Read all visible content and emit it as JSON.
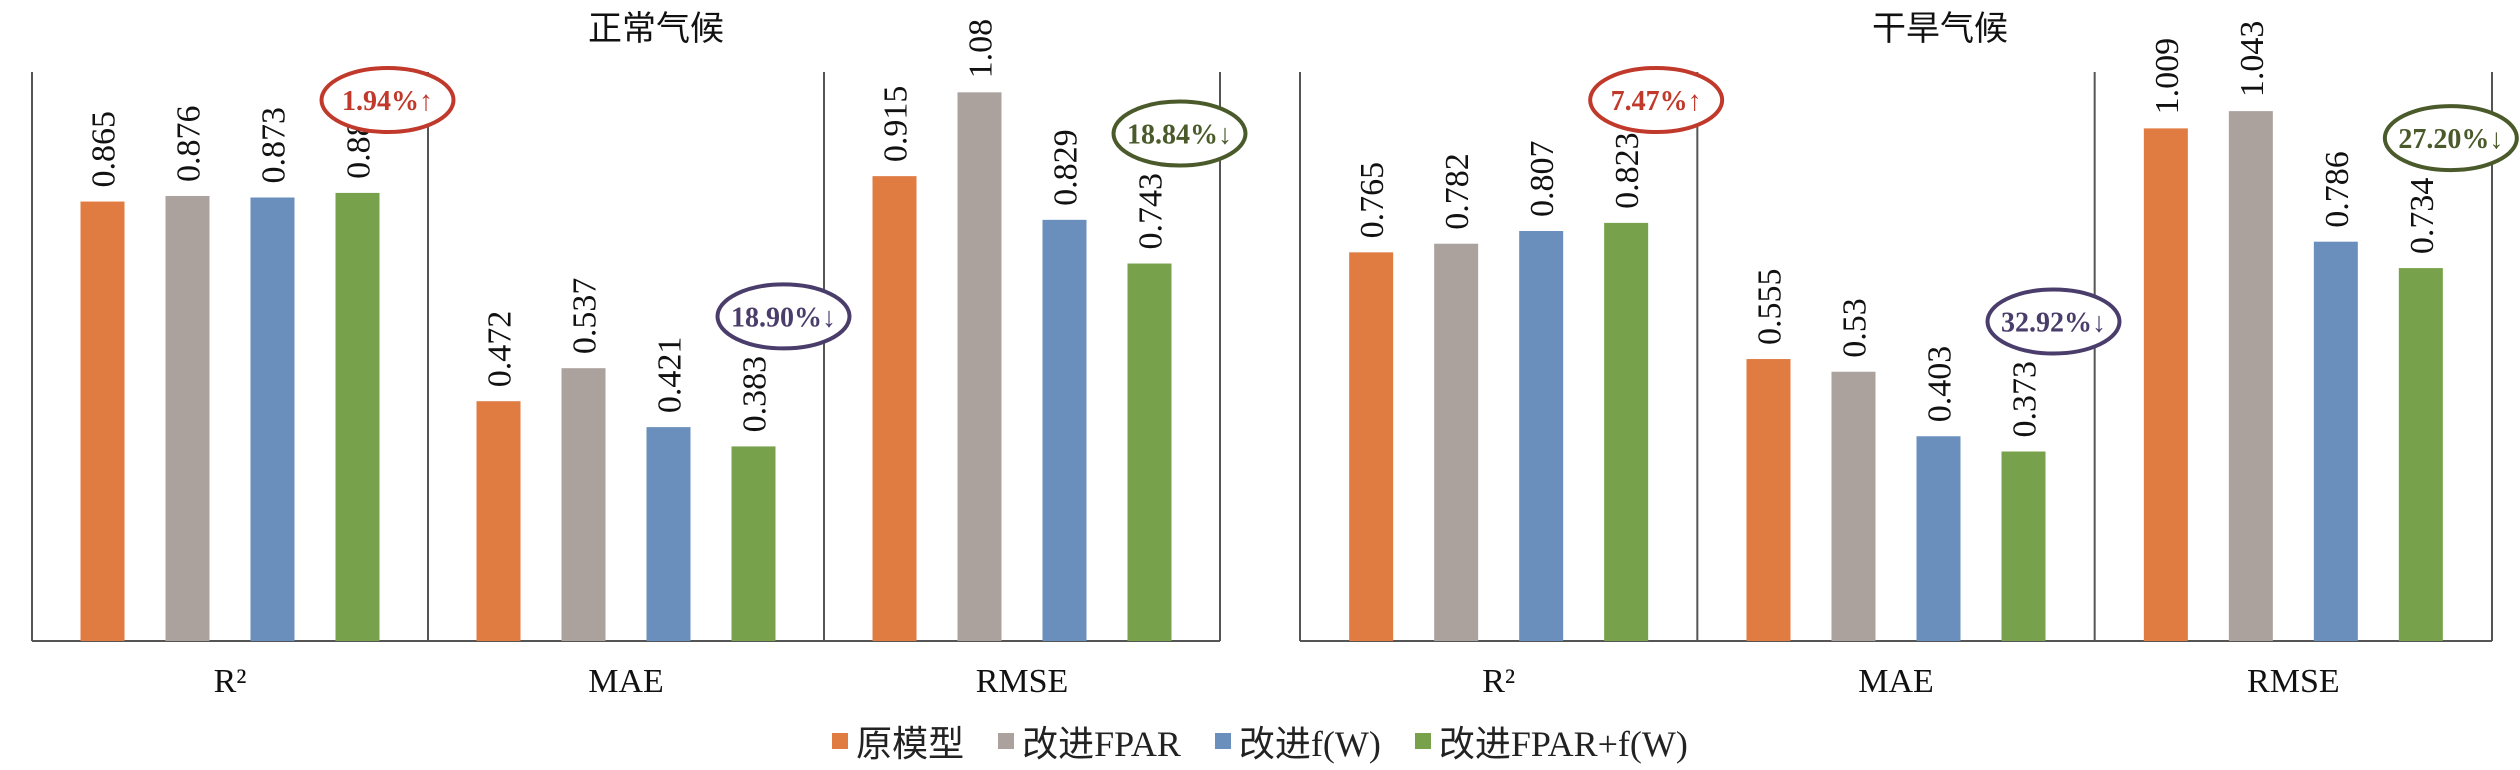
{
  "series": [
    {
      "name": "原模型",
      "color": "#e07b42"
    },
    {
      "name": "改进FPAR",
      "color": "#aba29e"
    },
    {
      "name": "改进f(W)",
      "color": "#6a8fbd"
    },
    {
      "name": "改进FPAR+f(W)",
      "color": "#77a14a"
    }
  ],
  "chart_data": [
    {
      "type": "bar",
      "title": "正常气候",
      "categories": [
        "R²",
        "MAE",
        "RMSE"
      ],
      "series": [
        {
          "name": "原模型",
          "values": [
            0.865,
            0.472,
            0.915
          ]
        },
        {
          "name": "改进FPAR",
          "values": [
            0.876,
            0.537,
            1.08
          ]
        },
        {
          "name": "改进f(W)",
          "values": [
            0.873,
            0.421,
            0.829
          ]
        },
        {
          "name": "改进FPAR+f(W)",
          "values": [
            0.882,
            0.383,
            0.743
          ]
        }
      ],
      "labels": [
        [
          "0.865",
          "0.876",
          "0.873",
          "0.882"
        ],
        [
          "0.472",
          "0.537",
          "0.421",
          "0.383"
        ],
        [
          "0.915",
          "1.08",
          "0.829",
          "0.743"
        ]
      ],
      "annotations": [
        {
          "text": "1.94%↑",
          "color": "#c0392b",
          "group": 0
        },
        {
          "text": "18.90%↓",
          "color": "#4a3d6b",
          "group": 1
        },
        {
          "text": "18.84%↓",
          "color": "#4a5a2a",
          "group": 2
        }
      ],
      "ylim": [
        0,
        1.12
      ]
    },
    {
      "type": "bar",
      "title": "干旱气候",
      "categories": [
        "R²",
        "MAE",
        "RMSE"
      ],
      "series": [
        {
          "name": "原模型",
          "values": [
            0.765,
            0.555,
            1.009
          ]
        },
        {
          "name": "改进FPAR",
          "values": [
            0.782,
            0.53,
            1.043
          ]
        },
        {
          "name": "改进f(W)",
          "values": [
            0.807,
            0.403,
            0.786
          ]
        },
        {
          "name": "改进FPAR+f(W)",
          "values": [
            0.823,
            0.373,
            0.734
          ]
        }
      ],
      "labels": [
        [
          "0.765",
          "0.782",
          "0.807",
          "0.823"
        ],
        [
          "0.555",
          "0.53",
          "0.403",
          "0.373"
        ],
        [
          "1.009",
          "1.043",
          "0.786",
          "0.734"
        ]
      ],
      "annotations": [
        {
          "text": "7.47%↑",
          "color": "#c0392b",
          "group": 0
        },
        {
          "text": "32.92%↓",
          "color": "#4a3d6b",
          "group": 1
        },
        {
          "text": "27.20%↓",
          "color": "#4a5a2a",
          "group": 2
        }
      ],
      "ylim": [
        0,
        1.12
      ]
    }
  ]
}
